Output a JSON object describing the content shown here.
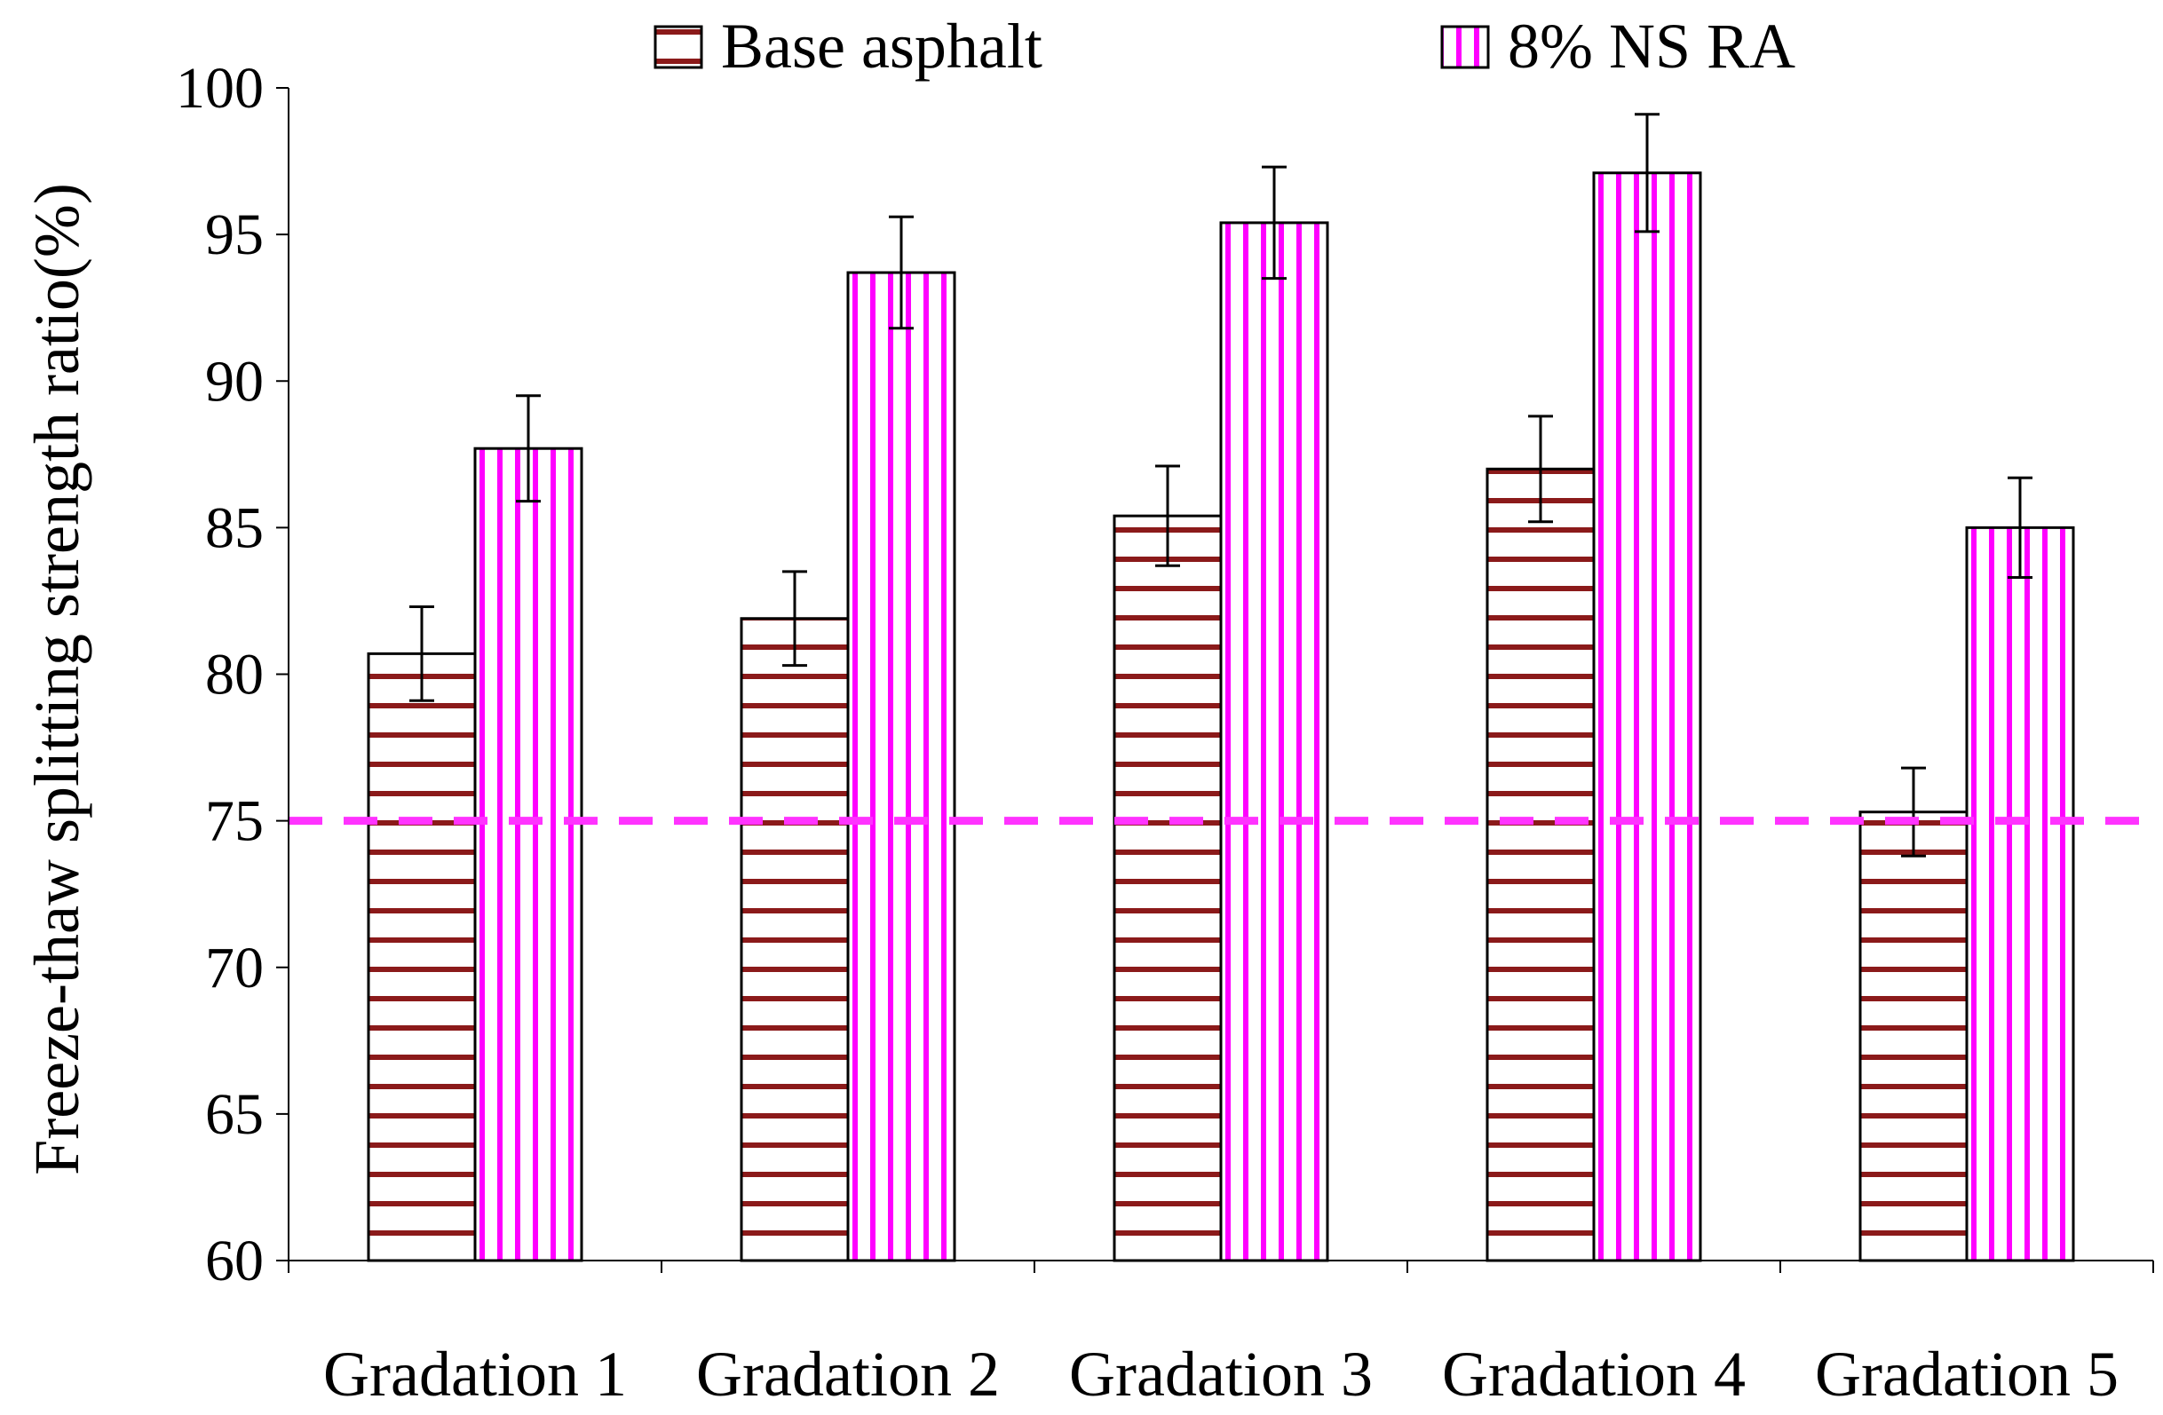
{
  "chart_data": {
    "type": "bar",
    "title": "",
    "xlabel": "",
    "ylabel": "Freeze-thaw splitting strength ratio(%)",
    "ylim": [
      60,
      100
    ],
    "yticks": [
      "60",
      "65",
      "70",
      "75",
      "80",
      "85",
      "90",
      "95",
      "100"
    ],
    "ytick_values": [
      60,
      65,
      70,
      75,
      80,
      85,
      90,
      95,
      100
    ],
    "categories": [
      "Gradation 1",
      "Gradation 2",
      "Gradation 3",
      "Gradation 4",
      "Gradation 5"
    ],
    "series": [
      {
        "name": "Base asphalt",
        "values": [
          80.7,
          81.9,
          85.4,
          87.0,
          75.3
        ],
        "errors": [
          1.6,
          1.6,
          1.7,
          1.8,
          1.5
        ],
        "pattern": "horizontal-stripes",
        "color": "#8B1A1A"
      },
      {
        "name": "8% NS RA",
        "values": [
          87.7,
          93.7,
          95.4,
          97.1,
          85.0
        ],
        "errors": [
          1.8,
          1.9,
          1.9,
          2.0,
          1.7
        ],
        "pattern": "vertical-stripes",
        "color": "#FF00FF"
      }
    ],
    "reference_line": {
      "value": 75,
      "style": "dashed",
      "color": "#FF33FF"
    },
    "legend": {
      "position": "top"
    },
    "grid": false
  }
}
